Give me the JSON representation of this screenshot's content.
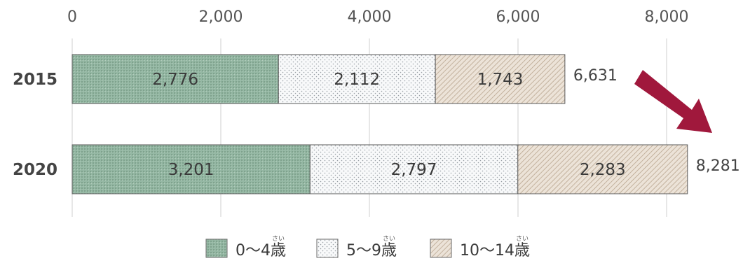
{
  "chart_data": {
    "type": "bar",
    "orientation": "horizontal",
    "stacked": true,
    "title": "",
    "xlabel": "",
    "ylabel": "",
    "xlim": [
      0,
      8000
    ],
    "x_ticks": [
      "0",
      "2,000",
      "4,000",
      "6,000",
      "8,000"
    ],
    "x_tick_values": [
      0,
      2000,
      4000,
      6000,
      8000
    ],
    "categories": [
      "2015",
      "2020"
    ],
    "series": [
      {
        "name": "0～4歳",
        "ruby": "さい",
        "values": [
          2776,
          3201
        ],
        "labels": [
          "2,776",
          "3,201"
        ],
        "color": "#93b5a2"
      },
      {
        "name": "5～9歳",
        "ruby": "さい",
        "values": [
          2112,
          2797
        ],
        "labels": [
          "2,112",
          "2,797"
        ],
        "color": "#f5f6f7"
      },
      {
        "name": "10～14歳",
        "ruby": "さい",
        "values": [
          1743,
          2283
        ],
        "labels": [
          "1,743",
          "2,283"
        ],
        "color": "#e6dbce"
      }
    ],
    "totals": [
      "6,631",
      "8,281"
    ],
    "grid": true,
    "legend_position": "bottom",
    "annotation": "down-right arrow",
    "arrow_color": "#a0183c"
  }
}
